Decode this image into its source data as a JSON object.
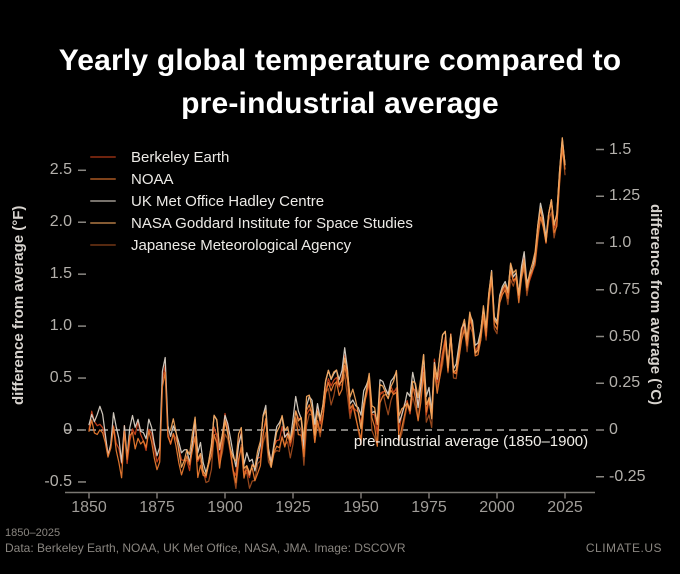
{
  "header": {
    "title": "Yearly global temperature compared to pre-industrial average"
  },
  "chart_data": {
    "type": "line",
    "title": "Yearly global temperature compared to pre-industrial average",
    "x_start": 1850,
    "x_end": 2025,
    "x_ticks": [
      1850,
      1875,
      1900,
      1925,
      1950,
      1975,
      2000,
      2025
    ],
    "y_left_axis": {
      "label": "difference from average (°F)",
      "tick_labels": [
        "2.5",
        "2.0",
        "1.5",
        "1.0",
        "0.5",
        "0",
        "-0.5"
      ],
      "tick_values": [
        2.5,
        2.0,
        1.5,
        1.0,
        0.5,
        0,
        -0.5
      ],
      "unit": "°F"
    },
    "y_right_axis": {
      "label": "difference from average (°C)",
      "tick_labels": [
        "1.5",
        "1.25",
        "1.0",
        "0.75",
        "0.50",
        "0.25",
        "0",
        "-0.25"
      ],
      "tick_values": [
        1.5,
        1.25,
        1.0,
        0.75,
        0.5,
        0.25,
        0,
        -0.25
      ],
      "unit": "°C"
    },
    "baseline_annotation": "pre-industrial average (1850–1900)",
    "baseline_value": 0,
    "grid": false,
    "legend_position": "top-left",
    "values_unit": "°C relative to 1850–1900 average",
    "values": [
      0.0,
      0.08,
      0.04,
      0.05,
      0.07,
      0.03,
      -0.05,
      -0.14,
      -0.08,
      0.06,
      -0.04,
      -0.1,
      -0.2,
      0.02,
      -0.15,
      -0.02,
      0.02,
      -0.04,
      0.03,
      -0.01,
      -0.02,
      -0.08,
      0.0,
      -0.04,
      -0.1,
      -0.14,
      -0.1,
      0.28,
      0.33,
      -0.03,
      -0.06,
      0.02,
      -0.02,
      -0.1,
      -0.18,
      -0.16,
      -0.13,
      -0.18,
      -0.08,
      0.02,
      -0.18,
      -0.12,
      -0.2,
      -0.23,
      -0.18,
      -0.12,
      0.02,
      0.0,
      -0.13,
      -0.03,
      0.07,
      0.0,
      -0.1,
      -0.18,
      -0.22,
      -0.08,
      -0.03,
      -0.22,
      -0.18,
      -0.22,
      -0.18,
      -0.22,
      -0.16,
      -0.12,
      0.02,
      0.08,
      -0.12,
      -0.18,
      -0.08,
      -0.02,
      -0.02,
      0.02,
      -0.06,
      -0.02,
      -0.06,
      0.02,
      0.12,
      0.05,
      0.04,
      -0.1,
      0.12,
      0.14,
      0.1,
      -0.02,
      0.12,
      0.06,
      0.12,
      0.22,
      0.26,
      0.22,
      0.28,
      0.32,
      0.26,
      0.28,
      0.38,
      0.28,
      0.12,
      0.16,
      0.12,
      0.08,
      0.02,
      0.16,
      0.22,
      0.28,
      0.08,
      0.06,
      -0.02,
      0.22,
      0.24,
      0.22,
      0.18,
      0.22,
      0.22,
      0.26,
      0.02,
      0.08,
      0.12,
      0.16,
      0.12,
      0.26,
      0.22,
      0.12,
      0.22,
      0.36,
      0.12,
      0.18,
      0.08,
      0.36,
      0.26,
      0.36,
      0.45,
      0.5,
      0.32,
      0.51,
      0.32,
      0.33,
      0.42,
      0.52,
      0.56,
      0.46,
      0.61,
      0.56,
      0.42,
      0.44,
      0.52,
      0.65,
      0.52,
      0.7,
      0.82,
      0.58,
      0.57,
      0.72,
      0.76,
      0.77,
      0.71,
      0.86,
      0.81,
      0.84,
      0.72,
      0.85,
      0.92,
      0.76,
      0.82,
      0.86,
      0.92,
      1.07,
      1.18,
      1.12,
      1.02,
      1.16,
      1.22,
      1.07,
      1.12,
      1.36,
      1.55,
      1.42
    ],
    "series": [
      {
        "name": "Berkeley Earth",
        "color": "#c8401a",
        "start_year": 1850
      },
      {
        "name": "NOAA",
        "color": "#e8792f",
        "start_year": 1850
      },
      {
        "name": "UK Met Office Hadley Centre",
        "color": "#d8d0c4",
        "start_year": 1850
      },
      {
        "name": "NASA Goddard Institute for Space Studies",
        "color": "#f2a55c",
        "start_year": 1880
      },
      {
        "name": "Japanese Meteorological Agency",
        "color": "#9c4a1d",
        "start_year": 1891
      }
    ]
  },
  "footer": {
    "range": "1850–2025",
    "source": "Data: Berkeley Earth, NOAA, UK Met Office, NASA, JMA. Image: DSCOVR",
    "brand": "CLIMATE.US"
  }
}
